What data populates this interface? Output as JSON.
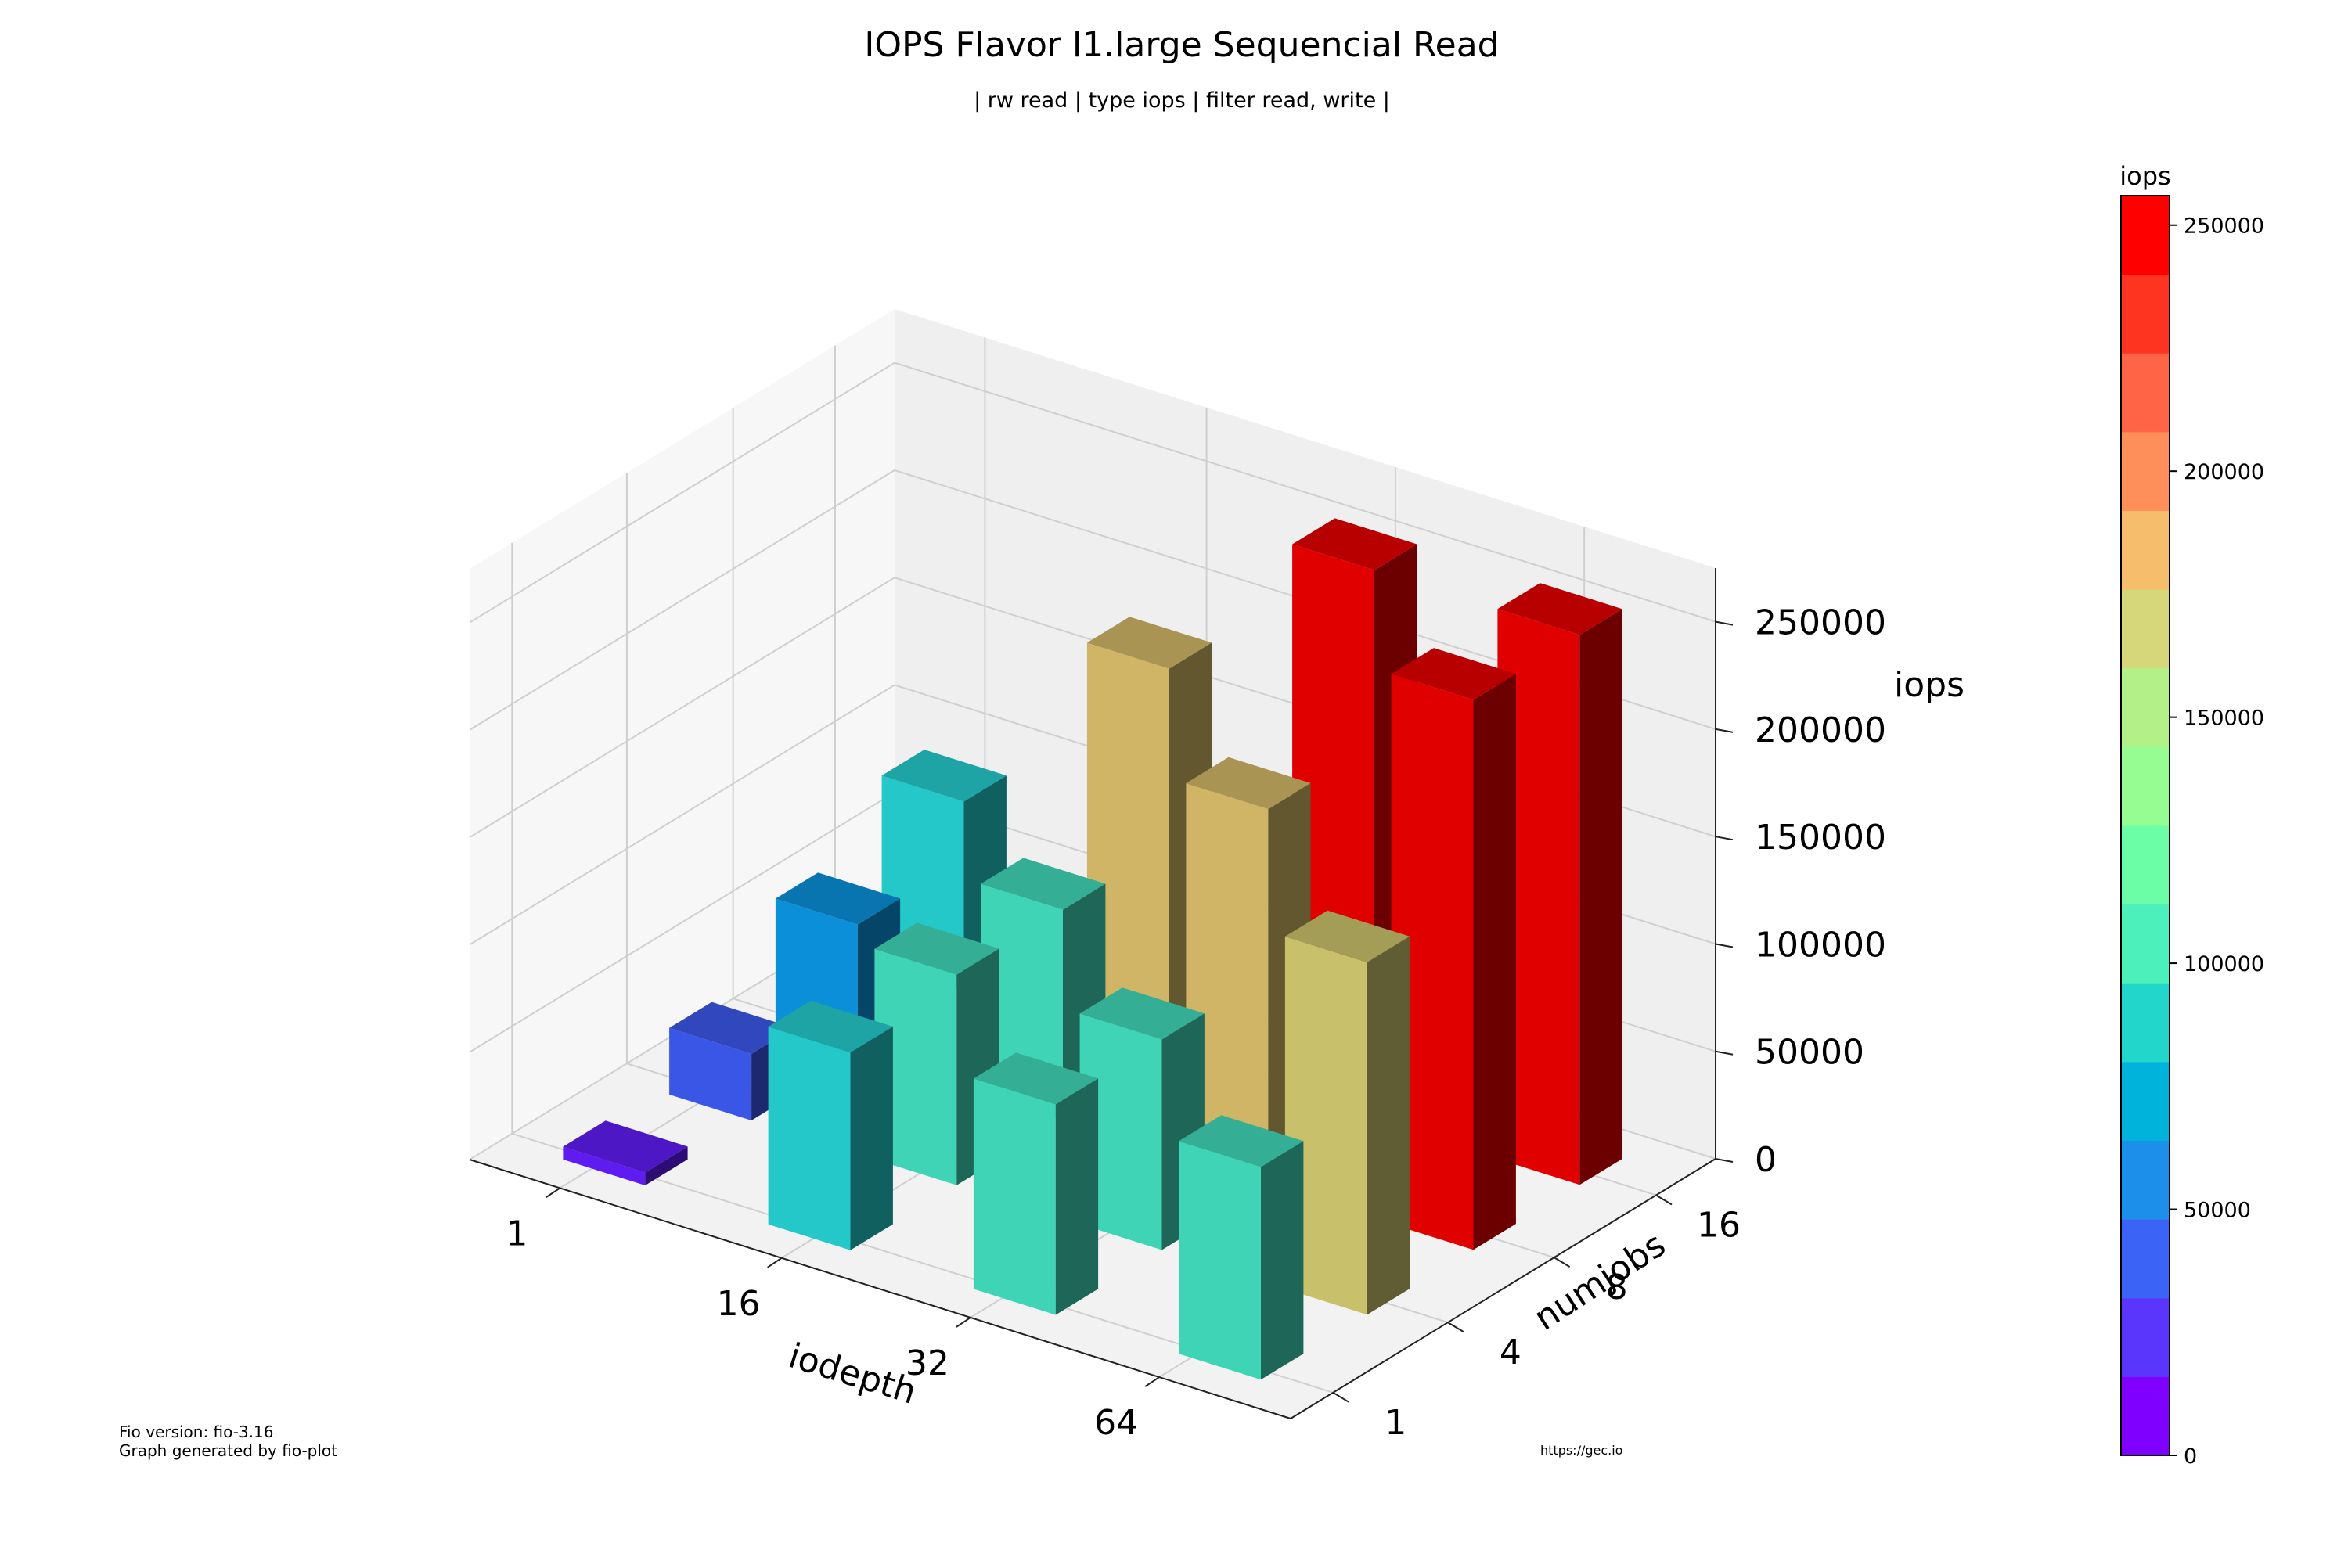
{
  "chart_data": {
    "type": "bar3d",
    "title": "IOPS Flavor l1.large Sequencial Read",
    "subtitle": "| rw read | type iops | filter read, write |",
    "xlabel": "iodepth",
    "ylabel": "numjobs",
    "zlabel": "iops",
    "x_categories": [
      "1",
      "16",
      "32",
      "64"
    ],
    "y_categories": [
      "1",
      "4",
      "8",
      "16"
    ],
    "z_ticks": [
      "0",
      "50000",
      "100000",
      "150000",
      "200000",
      "250000"
    ],
    "zlim": [
      0,
      250000
    ],
    "values": [
      {
        "iodepth": "1",
        "numjobs": "1",
        "iops": 6000
      },
      {
        "iodepth": "1",
        "numjobs": "4",
        "iops": 31000
      },
      {
        "iodepth": "1",
        "numjobs": "8",
        "iops": 61000
      },
      {
        "iodepth": "1",
        "numjobs": "16",
        "iops": 88000
      },
      {
        "iodepth": "16",
        "numjobs": "1",
        "iops": 92000
      },
      {
        "iodepth": "16",
        "numjobs": "4",
        "iops": 98000
      },
      {
        "iodepth": "16",
        "numjobs": "8",
        "iops": 98000
      },
      {
        "iodepth": "16",
        "numjobs": "16",
        "iops": 180000
      },
      {
        "iodepth": "32",
        "numjobs": "1",
        "iops": 98000
      },
      {
        "iodepth": "32",
        "numjobs": "4",
        "iops": 98000
      },
      {
        "iodepth": "32",
        "numjobs": "8",
        "iops": 175000
      },
      {
        "iodepth": "32",
        "numjobs": "16",
        "iops": 256000
      },
      {
        "iodepth": "64",
        "numjobs": "1",
        "iops": 99000
      },
      {
        "iodepth": "64",
        "numjobs": "4",
        "iops": 164000
      },
      {
        "iodepth": "64",
        "numjobs": "8",
        "iops": 256000
      },
      {
        "iodepth": "64",
        "numjobs": "16",
        "iops": 256000
      }
    ],
    "colorbar": {
      "label": "iops",
      "ticks": [
        "0",
        "50000",
        "100000",
        "150000",
        "200000",
        "250000"
      ],
      "max": 256000,
      "colors": [
        "#8000ff",
        "#5a36fd",
        "#3b64f6",
        "#1c8fea",
        "#00b3db",
        "#22d6cc",
        "#4bf0ba",
        "#6cfda7",
        "#95fd92",
        "#b3f087",
        "#d6d77a",
        "#f5bd6c",
        "#ff8f5a",
        "#ff6446",
        "#ff3420",
        "#ff0000"
      ]
    },
    "bar_colors": {
      "low": "#5e1cf0",
      "blue": "#3a56e6",
      "azure": "#0a8fd8",
      "cyan": "#24c8c8",
      "teal": "#3fd4b6",
      "tan": "#cfb565",
      "olive": "#c8c06a",
      "red": "#e00000"
    },
    "grid": true
  },
  "footer": {
    "fio_version": "Fio version: fio-3.16",
    "generated_by": "Graph generated by fio-plot",
    "url": "https://gec.io"
  }
}
